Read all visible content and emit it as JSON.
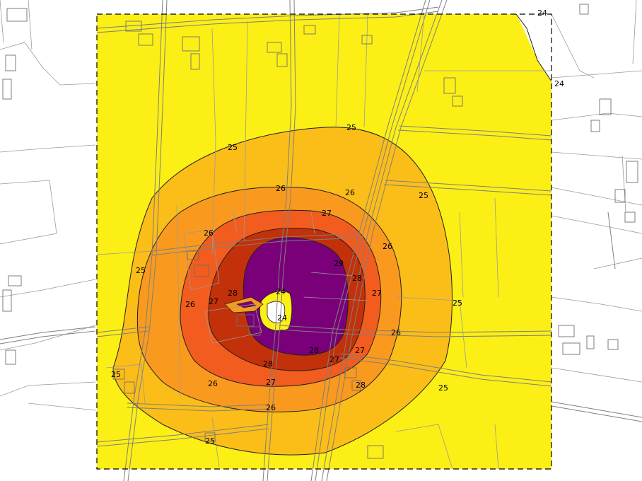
{
  "map": {
    "levels": [
      {
        "level": 24,
        "color": "#fbef16"
      },
      {
        "level": 25,
        "color": "#fbbd18"
      },
      {
        "level": 26,
        "color": "#f99a1e"
      },
      {
        "level": 27,
        "color": "#f25c1e"
      },
      {
        "level": 28,
        "color": "#c2310a"
      },
      {
        "level": 29,
        "color": "#7a007a"
      }
    ],
    "colors": {
      "background": "#ffffff",
      "domain_fill": "#fbef16",
      "contour_line": "#1f1f1f",
      "road": "#8a8a8a",
      "building": "#6f6f6f"
    },
    "labels": [
      "24",
      "24",
      "25",
      "25",
      "25",
      "25",
      "25",
      "25",
      "25",
      "25",
      "26",
      "26",
      "26",
      "26",
      "26",
      "26",
      "26",
      "26",
      "27",
      "27",
      "27",
      "27",
      "27",
      "27",
      "28",
      "28",
      "28",
      "28",
      "28",
      "29",
      "24",
      "24"
    ]
  }
}
